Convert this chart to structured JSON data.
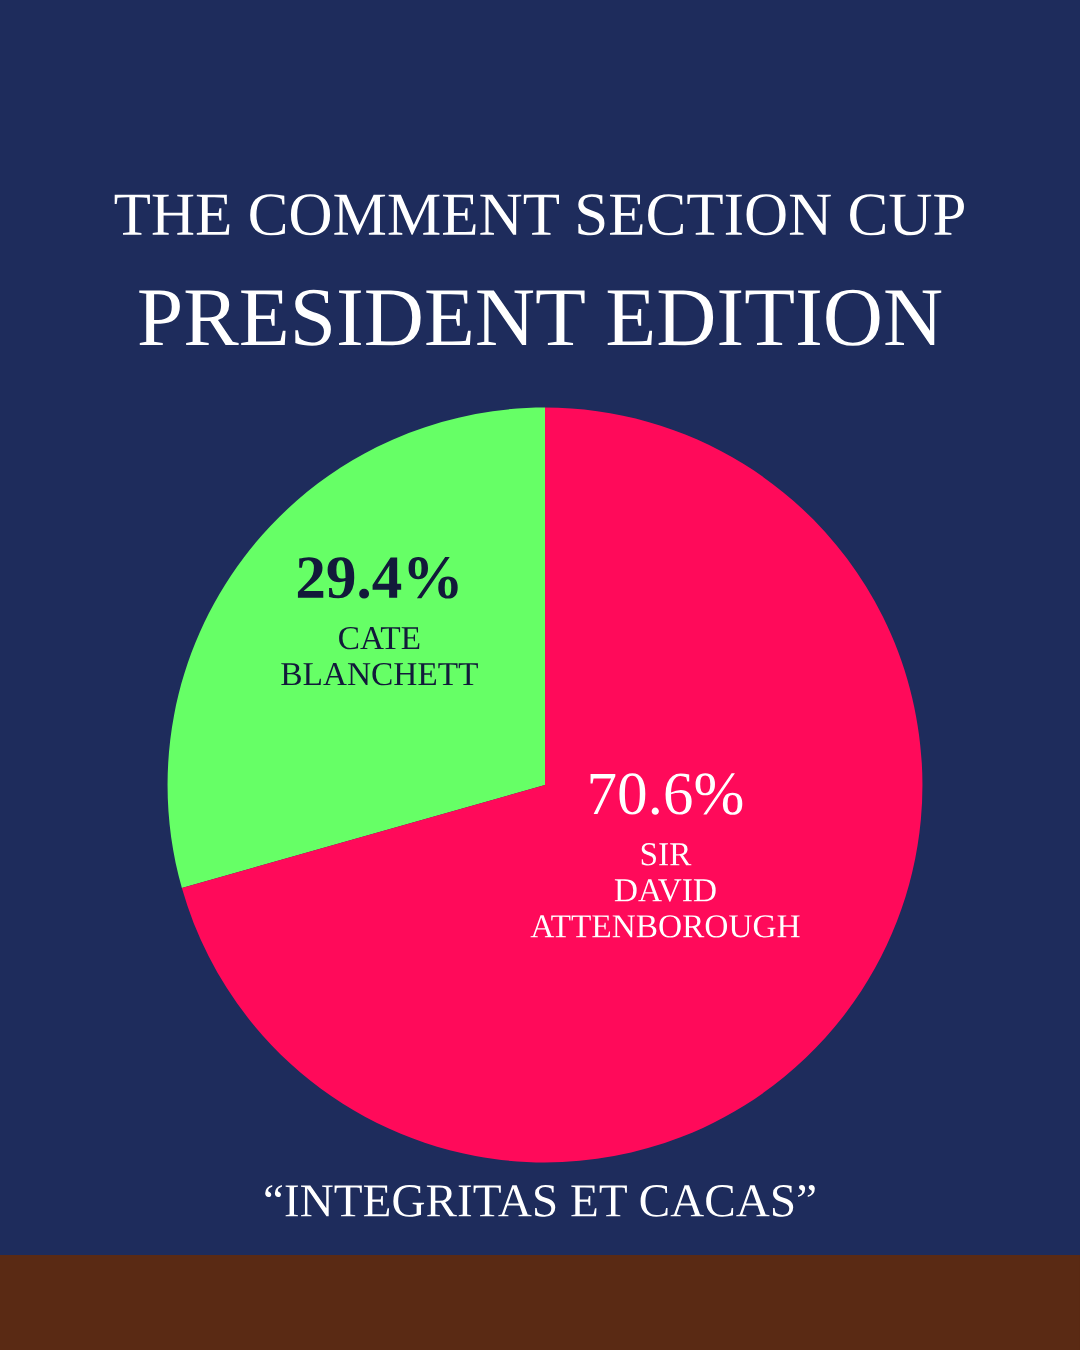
{
  "chart_data": {
    "type": "pie",
    "title": "THE COMMENT SECTION CUP",
    "subtitle": "PRESIDENT EDITION",
    "categories": [
      "CATE\nBLANCHETT",
      "SIR\nDAVID\nATTENBOROUGH"
    ],
    "values": [
      29.4,
      70.6
    ],
    "value_labels": [
      "29.4%",
      "70.6%"
    ],
    "colors": [
      "#66ff66",
      "#ff0a5a"
    ],
    "annotations": [
      "“INTEGRITAS ET CACAS”"
    ]
  }
}
